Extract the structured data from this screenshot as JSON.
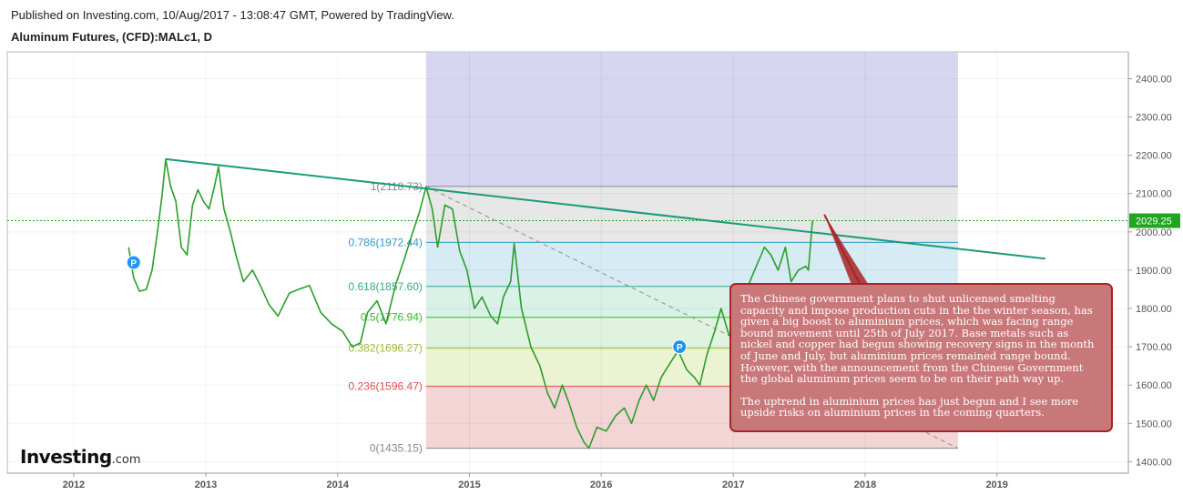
{
  "header": {
    "published": "Published on Investing.com, 10/Aug/2017 - 13:08:47 GMT, Powered by TradingView.",
    "symbol": "Aluminum Futures, (CFD):MALc1, D"
  },
  "logo": {
    "main": "Investing",
    "suffix": ".com"
  },
  "note": {
    "paragraphs": [
      "The Chinese government plans to shut unlicensed smelting capacity and impose production cuts in the the winter season, has given a big boost to aluminium prices, which was facing range bound movement until 25th of July 2017. Base metals such as nickel and copper had begun showing recovery signs in the month of June and July, but aluminium prices remained range bound. However, with the announcement from the Chinese Government the global aluminum prices seem to be on their path way up.",
      "The uptrend in aluminium prices has just begun and I see more upside risks on aluminium prices in the coming quarters."
    ]
  },
  "chart_data": {
    "type": "line",
    "x_axis": {
      "type": "date",
      "ticks": [
        "2012",
        "2013",
        "2014",
        "2015",
        "2016",
        "2017",
        "2018",
        "2019"
      ],
      "range": [
        "2011-07-01",
        "2019-12-31"
      ]
    },
    "y_axis": {
      "position": "right",
      "range": [
        1370,
        2470
      ],
      "ticks": [
        "1400.00",
        "1500.00",
        "1600.00",
        "1700.00",
        "1800.00",
        "1900.00",
        "2000.00",
        "2100.00",
        "2200.00",
        "2300.00",
        "2400.00"
      ]
    },
    "last_price": {
      "label": "2029.25",
      "value": 2029.25,
      "color": "#21a51f"
    },
    "series": [
      {
        "color": "#2b9e2b",
        "points": [
          [
            "2012-06-01",
            1960
          ],
          [
            "2012-06-15",
            1880
          ],
          [
            "2012-07-01",
            1845
          ],
          [
            "2012-07-20",
            1850
          ],
          [
            "2012-08-05",
            1900
          ],
          [
            "2012-08-20",
            2000
          ],
          [
            "2012-09-01",
            2090
          ],
          [
            "2012-09-12",
            2190
          ],
          [
            "2012-09-25",
            2120
          ],
          [
            "2012-10-10",
            2080
          ],
          [
            "2012-10-25",
            1960
          ],
          [
            "2012-11-10",
            1940
          ],
          [
            "2012-11-25",
            2070
          ],
          [
            "2012-12-10",
            2110
          ],
          [
            "2012-12-25",
            2080
          ],
          [
            "2013-01-10",
            2060
          ],
          [
            "2013-01-25",
            2120
          ],
          [
            "2013-02-05",
            2170
          ],
          [
            "2013-02-20",
            2060
          ],
          [
            "2013-03-10",
            2000
          ],
          [
            "2013-03-25",
            1940
          ],
          [
            "2013-04-15",
            1870
          ],
          [
            "2013-05-10",
            1900
          ],
          [
            "2013-06-01",
            1860
          ],
          [
            "2013-06-25",
            1810
          ],
          [
            "2013-07-20",
            1780
          ],
          [
            "2013-08-20",
            1840
          ],
          [
            "2013-09-15",
            1850
          ],
          [
            "2013-10-15",
            1860
          ],
          [
            "2013-11-15",
            1790
          ],
          [
            "2013-12-15",
            1760
          ],
          [
            "2014-01-15",
            1740
          ],
          [
            "2014-02-10",
            1700
          ],
          [
            "2014-03-05",
            1710
          ],
          [
            "2014-03-25",
            1790
          ],
          [
            "2014-04-20",
            1820
          ],
          [
            "2014-05-15",
            1760
          ],
          [
            "2014-06-10",
            1860
          ],
          [
            "2014-07-05",
            1930
          ],
          [
            "2014-07-25",
            1990
          ],
          [
            "2014-08-15",
            2050
          ],
          [
            "2014-09-03",
            2118
          ],
          [
            "2014-09-20",
            2060
          ],
          [
            "2014-10-05",
            1960
          ],
          [
            "2014-10-25",
            2070
          ],
          [
            "2014-11-15",
            2060
          ],
          [
            "2014-12-05",
            1950
          ],
          [
            "2014-12-25",
            1900
          ],
          [
            "2015-01-15",
            1800
          ],
          [
            "2015-02-05",
            1830
          ],
          [
            "2015-03-01",
            1780
          ],
          [
            "2015-03-20",
            1760
          ],
          [
            "2015-04-05",
            1830
          ],
          [
            "2015-04-25",
            1870
          ],
          [
            "2015-05-05",
            1970
          ],
          [
            "2015-05-25",
            1800
          ],
          [
            "2015-06-20",
            1700
          ],
          [
            "2015-07-15",
            1650
          ],
          [
            "2015-08-05",
            1580
          ],
          [
            "2015-08-25",
            1540
          ],
          [
            "2015-09-15",
            1600
          ],
          [
            "2015-10-05",
            1550
          ],
          [
            "2015-10-25",
            1490
          ],
          [
            "2015-11-15",
            1450
          ],
          [
            "2015-11-28",
            1435
          ],
          [
            "2015-12-20",
            1490
          ],
          [
            "2016-01-15",
            1480
          ],
          [
            "2016-02-10",
            1520
          ],
          [
            "2016-03-05",
            1540
          ],
          [
            "2016-03-25",
            1500
          ],
          [
            "2016-04-15",
            1560
          ],
          [
            "2016-05-05",
            1600
          ],
          [
            "2016-05-25",
            1560
          ],
          [
            "2016-06-15",
            1620
          ],
          [
            "2016-07-05",
            1650
          ],
          [
            "2016-08-01",
            1690
          ],
          [
            "2016-08-25",
            1640
          ],
          [
            "2016-09-15",
            1620
          ],
          [
            "2016-09-30",
            1600
          ],
          [
            "2016-10-20",
            1680
          ],
          [
            "2016-11-10",
            1740
          ],
          [
            "2016-11-28",
            1800
          ],
          [
            "2016-12-20",
            1730
          ],
          [
            "2017-01-10",
            1720
          ],
          [
            "2017-01-30",
            1830
          ],
          [
            "2017-02-20",
            1880
          ],
          [
            "2017-03-10",
            1920
          ],
          [
            "2017-03-28",
            1960
          ],
          [
            "2017-04-15",
            1940
          ],
          [
            "2017-05-05",
            1900
          ],
          [
            "2017-05-25",
            1960
          ],
          [
            "2017-06-10",
            1870
          ],
          [
            "2017-06-30",
            1900
          ],
          [
            "2017-07-20",
            1910
          ],
          [
            "2017-07-28",
            1900
          ],
          [
            "2017-08-08",
            2029
          ]
        ]
      }
    ],
    "fibonacci": {
      "x_start": "2014-09-03",
      "x_end": "2018-09-15",
      "levels": [
        {
          "label": "0(1435.15)",
          "ratio": 0,
          "value": 1435.15,
          "line": "#888888",
          "fill": "#f2d0d0"
        },
        {
          "label": "0.236(1596.47)",
          "ratio": 0.236,
          "value": 1596.47,
          "line": "#e05050",
          "fill": "#eaf2cd"
        },
        {
          "label": "0.382(1696.27)",
          "ratio": 0.382,
          "value": 1696.27,
          "line": "#99bb33",
          "fill": "#dcf2dc"
        },
        {
          "label": "0.5(1776.94)",
          "ratio": 0.5,
          "value": 1776.94,
          "line": "#33bb33",
          "fill": "#d6efe4"
        },
        {
          "label": "0.618(1857.60)",
          "ratio": 0.618,
          "value": 1857.6,
          "line": "#33aa88",
          "fill": "#d2e9f2"
        },
        {
          "label": "0.786(1972.44)",
          "ratio": 0.786,
          "value": 1972.44,
          "line": "#3399cc",
          "fill": "#e4e4e4"
        },
        {
          "label": "1(2118.73)",
          "ratio": 1,
          "value": 2118.73,
          "line": "#888888",
          "fill": "#d2d2f0"
        }
      ],
      "top_fill_value": 2470,
      "diagonal": [
        [
          "2014-09-03",
          2118.73
        ],
        [
          "2018-09-15",
          1435.15
        ]
      ]
    },
    "trendline": {
      "color": "#1a9a7c",
      "points": [
        [
          "2012-09-12",
          2190
        ],
        [
          "2019-05-15",
          1930
        ]
      ]
    },
    "pivots": [
      {
        "date": "2012-06-15",
        "value": 1920,
        "label": "P"
      },
      {
        "date": "2016-08-05",
        "value": 1700,
        "label": "P"
      }
    ],
    "arrow": {
      "color": "#a82424",
      "from": [
        "2018-01-15",
        1810
      ],
      "to": [
        "2017-09-10",
        2045
      ]
    }
  }
}
